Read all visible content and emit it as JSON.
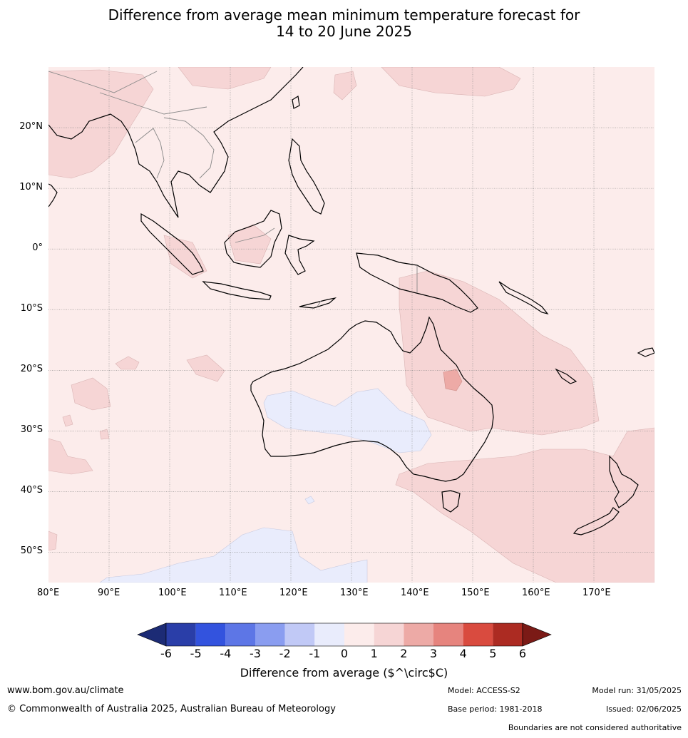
{
  "title_line1": "Difference from average mean minimum temperature forecast for",
  "title_line2": "14 to 20 June 2025",
  "map": {
    "lon_range": [
      80,
      180
    ],
    "lat_range": [
      -55,
      30
    ],
    "lon_labels": [
      "80°E",
      "90°E",
      "100°E",
      "110°E",
      "120°E",
      "130°E",
      "140°E",
      "150°E",
      "160°E",
      "170°E"
    ],
    "lat_labels": [
      "20°N",
      "10°N",
      "0°",
      "10°S",
      "20°S",
      "30°S",
      "40°S",
      "50°S"
    ],
    "background_class": "0 to 1",
    "grid": true
  },
  "colorbar": {
    "ticks": [
      "-6",
      "-5",
      "-4",
      "-3",
      "-2",
      "-1",
      "0",
      "1",
      "2",
      "3",
      "4",
      "5",
      "6"
    ],
    "colors": [
      "#2a3ea8",
      "#3353de",
      "#5d76e6",
      "#8a9df0",
      "#c1c9f6",
      "#e9ecfc",
      "#fceceb",
      "#f6d5d5",
      "#edaaa6",
      "#e6847e",
      "#d94b3f",
      "#ac2b22"
    ],
    "under_color": "#1c2b75",
    "over_color": "#7b1a16",
    "label": "Difference from average ($^\\circ$C)"
  },
  "footer": {
    "website": "www.bom.gov.au/climate",
    "copyright": "© Commonwealth of Australia 2025, Australian Bureau of Meteorology",
    "model": "Model: ACCESS-S2",
    "base_period": "Base period: 1981-2018",
    "model_run": "Model run: 31/05/2025",
    "issued": "Issued: 02/06/2025",
    "disclaimer": "Boundaries are not considered authoritative"
  }
}
